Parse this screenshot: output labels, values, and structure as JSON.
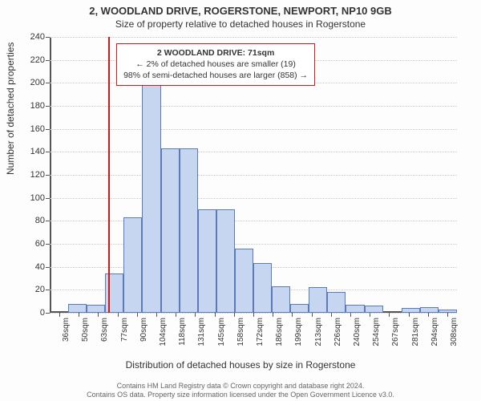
{
  "title": {
    "main": "2, WOODLAND DRIVE, ROGERSTONE, NEWPORT, NP10 9GB",
    "sub": "Size of property relative to detached houses in Rogerstone"
  },
  "axes": {
    "xlabel": "Distribution of detached houses by size in Rogerstone",
    "ylabel": "Number of detached properties"
  },
  "chart": {
    "type": "histogram",
    "ylim": [
      0,
      240
    ],
    "ytick_step": 20,
    "xtick_labels": [
      "36sqm",
      "50sqm",
      "63sqm",
      "77sqm",
      "90sqm",
      "104sqm",
      "118sqm",
      "131sqm",
      "145sqm",
      "158sqm",
      "172sqm",
      "186sqm",
      "199sqm",
      "213sqm",
      "226sqm",
      "240sqm",
      "254sqm",
      "267sqm",
      "281sqm",
      "294sqm",
      "308sqm"
    ],
    "values": [
      0,
      8,
      7,
      34,
      83,
      200,
      143,
      143,
      90,
      90,
      56,
      43,
      23,
      8,
      22,
      18,
      7,
      6,
      0,
      4,
      5,
      3
    ],
    "bar_color": "#c7d6f0",
    "bar_border": "#5b7bb8",
    "grid_color": "#c8c8c8",
    "axis_color": "#555555",
    "background": "#fdfdfd",
    "ref_line_color": "#d11717",
    "ref_value_sqm": 71,
    "x_range_sqm": [
      30,
      315
    ]
  },
  "annotation": {
    "title": "2 WOODLAND DRIVE: 71sqm",
    "line1": "← 2% of detached houses are smaller (19)",
    "line2": "98% of semi-detached houses are larger (858) →"
  },
  "footer": {
    "line1": "Contains HM Land Registry data © Crown copyright and database right 2024.",
    "line2": "Contains OS data. Property size information licensed under the Open Government Licence v3.0."
  }
}
